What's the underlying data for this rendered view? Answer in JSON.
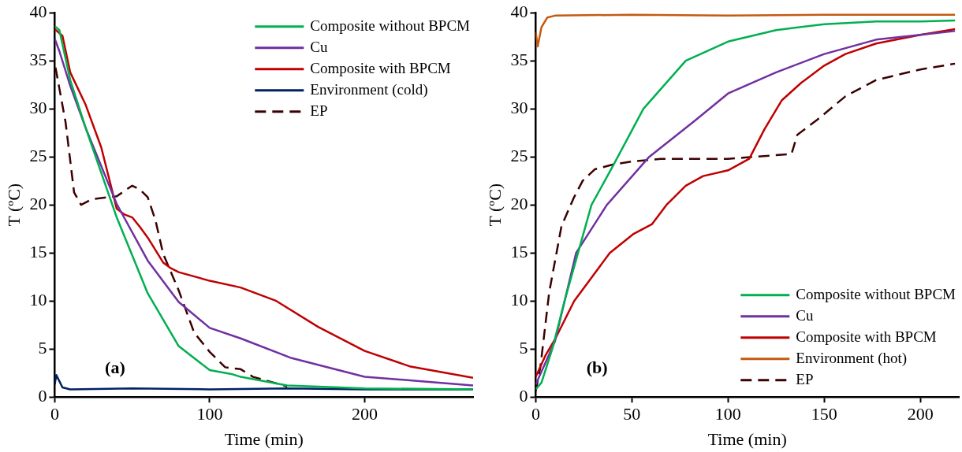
{
  "chart_data": [
    {
      "type": "line",
      "xlabel": "Time (min)",
      "ylabel": "T (ºC)",
      "xlim": [
        0,
        270
      ],
      "xticks": [
        0,
        100,
        200
      ],
      "ylim": [
        0,
        40
      ],
      "yticks": [
        0,
        5,
        10,
        15,
        20,
        25,
        30,
        35,
        40
      ],
      "grid": false,
      "legend": "top right",
      "annotations": [
        "(a)"
      ],
      "series": [
        {
          "name": "Composite without BPCM",
          "color": "#00b050",
          "x": [
            0,
            3,
            10,
            20,
            40,
            60,
            80,
            100,
            114,
            120,
            150,
            200,
            270
          ],
          "values": [
            38.6,
            38.2,
            33,
            28,
            18.7,
            10.8,
            5.3,
            2.8,
            2.4,
            2.1,
            1.2,
            0.9,
            0.8
          ]
        },
        {
          "name": "Cu",
          "color": "#7030a0",
          "x": [
            0,
            3,
            10,
            20,
            40,
            60,
            80,
            100,
            120,
            152,
            200,
            240,
            270
          ],
          "values": [
            37.3,
            36,
            32.4,
            28,
            20.1,
            14.2,
            9.9,
            7.2,
            6.1,
            4.1,
            2.1,
            1.6,
            1.2
          ]
        },
        {
          "name": "Composite with BPCM",
          "color": "#c00000",
          "x": [
            0,
            5,
            10,
            20,
            30,
            40,
            45,
            50,
            55,
            60,
            70,
            75,
            80,
            100,
            120,
            143,
            170,
            200,
            229,
            270
          ],
          "values": [
            38.3,
            37.6,
            33.8,
            30.4,
            26,
            19.6,
            19,
            18.7,
            17.7,
            16.6,
            14,
            13.4,
            13,
            12.1,
            11.4,
            10,
            7.3,
            4.8,
            3.2,
            2
          ]
        },
        {
          "name": "Environment (cold)",
          "color": "#002060",
          "x": [
            0,
            1,
            5,
            10,
            50,
            100,
            150,
            200,
            270
          ],
          "values": [
            1.3,
            2.3,
            1,
            0.8,
            0.9,
            0.8,
            0.9,
            0.8,
            0.8
          ]
        },
        {
          "name": "EP",
          "color": "#3d0000",
          "line_style": "dashed",
          "x": [
            0.5,
            2,
            7,
            12.5,
            17,
            24,
            40,
            50,
            55,
            60,
            65,
            70,
            80,
            90,
            100,
            110,
            120,
            128,
            150
          ],
          "values": [
            34.3,
            33,
            28.6,
            21.3,
            20,
            20.6,
            20.9,
            22,
            21.6,
            20.8,
            18.4,
            14.9,
            11.1,
            6.7,
            4.7,
            3.1,
            2.9,
            2.1,
            1.1
          ]
        }
      ]
    },
    {
      "type": "line",
      "xlabel": "Time (min)",
      "ylabel": "T (ºC)",
      "xlim": [
        0,
        220
      ],
      "xticks": [
        0,
        50,
        100,
        150,
        200
      ],
      "ylim": [
        0,
        40
      ],
      "yticks": [
        0,
        5,
        10,
        15,
        20,
        25,
        30,
        35,
        40
      ],
      "grid": false,
      "legend": "bottom right",
      "annotations": [
        "(b)"
      ],
      "series": [
        {
          "name": "Composite without BPCM",
          "color": "#00b050",
          "x": [
            0,
            3,
            8.6,
            15,
            22,
            29,
            40,
            56,
            78,
            100,
            125,
            150,
            177,
            200,
            218
          ],
          "values": [
            0.8,
            1.5,
            5,
            10,
            15,
            20,
            24,
            30,
            35,
            37,
            38.2,
            38.8,
            39.1,
            39.1,
            39.2
          ]
        },
        {
          "name": "Cu",
          "color": "#7030a0",
          "x": [
            0,
            10,
            21,
            37,
            59,
            83,
            100,
            125,
            150,
            177,
            200,
            218
          ],
          "values": [
            1.3,
            5.8,
            15,
            20,
            25,
            28.8,
            31.6,
            33.8,
            35.7,
            37.2,
            37.7,
            38.1
          ]
        },
        {
          "name": "Composite with BPCM",
          "color": "#c00000",
          "x": [
            0,
            5,
            10,
            20,
            38.5,
            51,
            60.5,
            68,
            78,
            87,
            100,
            111,
            119,
            128,
            138,
            150,
            161,
            177,
            200,
            218
          ],
          "values": [
            2.1,
            4.3,
            6,
            10,
            15,
            17,
            18,
            20,
            22,
            23,
            23.6,
            24.8,
            27.9,
            30.9,
            32.7,
            34.5,
            35.7,
            36.8,
            37.7,
            38.3
          ]
        },
        {
          "name": "Environment (hot)",
          "color": "#c55a11",
          "x": [
            0,
            1,
            3,
            6,
            10,
            50,
            100,
            150,
            200,
            218
          ],
          "values": [
            38,
            36.5,
            38.5,
            39.5,
            39.7,
            39.8,
            39.7,
            39.8,
            39.8,
            39.8
          ]
        },
        {
          "name": "EP",
          "color": "#3d0000",
          "line_style": "dashed",
          "x": [
            0,
            2.4,
            7,
            13.4,
            19.7,
            24.4,
            30.7,
            40,
            49.5,
            65,
            91,
            100,
            133,
            136,
            146,
            161,
            177,
            200,
            218
          ],
          "values": [
            0.6,
            3.1,
            10.9,
            17.8,
            20.7,
            22.5,
            23.7,
            24.2,
            24.5,
            24.8,
            24.8,
            24.8,
            25.3,
            27.3,
            28.8,
            31.3,
            33,
            34.1,
            34.7
          ]
        }
      ]
    }
  ]
}
